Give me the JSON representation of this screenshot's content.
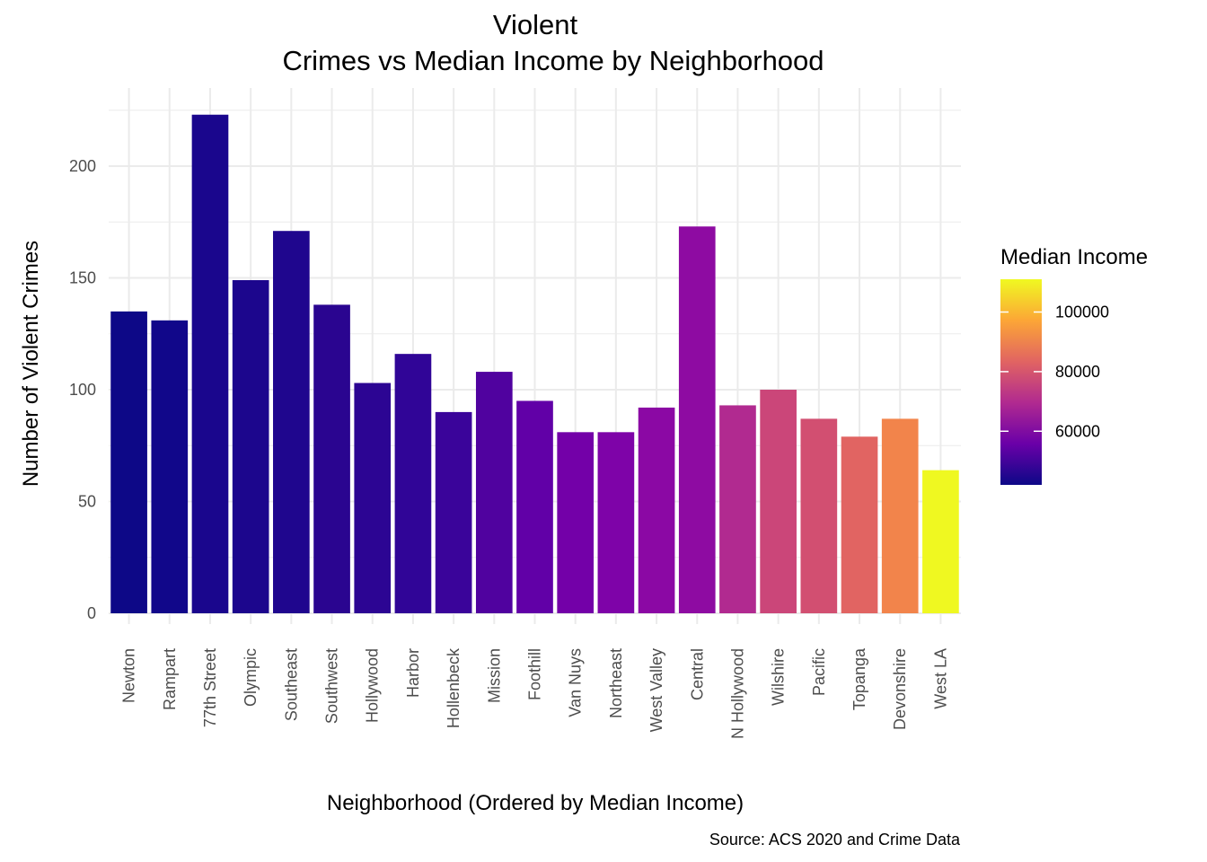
{
  "chart_data": {
    "type": "bar",
    "title_lines": [
      "Violent",
      "Crimes vs Median Income by Neighborhood"
    ],
    "xlabel": "Neighborhood (Ordered by Median Income)",
    "ylabel": "Number of Violent Crimes",
    "caption": "Source: ACS 2020 and Crime Data",
    "categories": [
      "Newton",
      "Rampart",
      "77th Street",
      "Olympic",
      "Southeast",
      "Southwest",
      "Hollywood",
      "Harbor",
      "Hollenbeck",
      "Mission",
      "Foothill",
      "Van Nuys",
      "Northeast",
      "West Valley",
      "Central",
      "N Hollywood",
      "Wilshire",
      "Pacific",
      "Topanga",
      "Devonshire",
      "West LA"
    ],
    "values": [
      135,
      131,
      223,
      149,
      171,
      138,
      103,
      116,
      90,
      108,
      95,
      81,
      81,
      92,
      173,
      93,
      100,
      87,
      79,
      87,
      64
    ],
    "fill_colors": [
      "#0d0887",
      "#11078a",
      "#1a068d",
      "#1c068d",
      "#1f068e",
      "#2a0590",
      "#2c0593",
      "#300597",
      "#3a049a",
      "#50029f",
      "#6100a7",
      "#7300a8",
      "#7e03a8",
      "#8b08a4",
      "#8e0ba2",
      "#b12a90",
      "#cb4679",
      "#d24f71",
      "#e16462",
      "#f2844b",
      "#eff821"
    ],
    "ylim": [
      0,
      230
    ],
    "yticks": [
      0,
      50,
      100,
      150,
      200
    ],
    "grid": true,
    "legend": {
      "title": "Median Income",
      "placement": "right",
      "ticks": [
        "60000",
        "80000",
        "100000"
      ],
      "tick_values": [
        60000,
        80000,
        100000
      ],
      "range": [
        42000,
        111000
      ],
      "gradient_colors": [
        "#0d0887",
        "#6a00a8",
        "#b12a90",
        "#e16462",
        "#fca636",
        "#f0f921"
      ]
    }
  }
}
